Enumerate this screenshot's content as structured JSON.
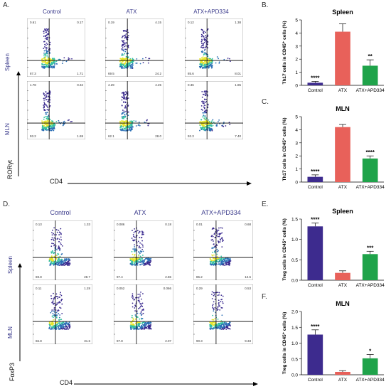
{
  "panels": {
    "A": {
      "label": "A.",
      "columns": [
        "Control",
        "ATX",
        "ATX+APD334"
      ],
      "rows": [
        "Spleen",
        "MLN"
      ],
      "ylabel": "RORγt",
      "xlabel": "CD4",
      "quadrants": [
        [
          [
            "0.61",
            "0.17",
            "87.3",
            "1.71"
          ],
          [
            "0.19",
            "4.15",
            "69.5",
            "24.2"
          ],
          [
            "0.12",
            "1.38",
            "85.6",
            "8.01"
          ]
        ],
        [
          [
            "1.78",
            "0.34",
            "93.2",
            "1.69"
          ],
          [
            "4.29",
            "4.25",
            "62.1",
            "28.0"
          ],
          [
            "0.36",
            "1.85",
            "92.3",
            "7.40"
          ]
        ]
      ]
    },
    "D": {
      "label": "D.",
      "columns": [
        "Control",
        "ATX",
        "ATX+APD334"
      ],
      "rows": [
        "Spleen",
        "MLN"
      ],
      "ylabel": "FoxP3",
      "xlabel": "CD4",
      "quadrants": [
        [
          [
            "0.13",
            "1.33",
            "69.8",
            "28.7"
          ],
          [
            "0.086",
            "0.18",
            "97.4",
            "2.86"
          ],
          [
            "0.01",
            "0.68",
            "86.2",
            "12.6"
          ]
        ],
        [
          [
            "0.11",
            "1.28",
            "66.8",
            "31.6"
          ],
          [
            "0.052",
            "0.066",
            "97.8",
            "2.07"
          ],
          [
            "0.29",
            "0.53",
            "90.3",
            "9.33"
          ]
        ]
      ]
    }
  },
  "chart_data": [
    {
      "panel": "B.",
      "type": "bar",
      "title": "Spleen",
      "ylabel": "Th17 cells in CD45⁺ cells (%)",
      "categories": [
        "Control",
        "ATX",
        "ATX+APD334"
      ],
      "values": [
        0.2,
        4.1,
        1.5
      ],
      "errors": [
        0.1,
        0.6,
        0.45
      ],
      "sig": [
        "****",
        "",
        "**"
      ],
      "ylim": [
        0,
        5
      ],
      "yticks": [
        "0",
        "1",
        "2",
        "3",
        "4",
        "5"
      ],
      "colors": [
        "#3d2b8e",
        "#e8615a",
        "#1fa34a"
      ]
    },
    {
      "panel": "C.",
      "type": "bar",
      "title": "MLN",
      "ylabel": "Th17 cells in CD45⁺ cells (%)",
      "categories": [
        "Control",
        "ATX",
        "ATX+APD334"
      ],
      "values": [
        0.4,
        4.2,
        1.8
      ],
      "errors": [
        0.15,
        0.2,
        0.2
      ],
      "sig": [
        "****",
        "",
        "****"
      ],
      "ylim": [
        0,
        5
      ],
      "yticks": [
        "0",
        "1",
        "2",
        "3",
        "4",
        "5"
      ],
      "colors": [
        "#3d2b8e",
        "#e8615a",
        "#1fa34a"
      ]
    },
    {
      "panel": "E.",
      "type": "bar",
      "title": "Spleen",
      "ylabel": "Treg cells in CD45⁺ cells (%)",
      "categories": [
        "Control",
        "ATX",
        "ATX+APD334"
      ],
      "values": [
        1.32,
        0.18,
        0.64
      ],
      "errors": [
        0.08,
        0.05,
        0.07
      ],
      "sig": [
        "****",
        "",
        "***"
      ],
      "ylim": [
        0,
        1.5
      ],
      "yticks": [
        "0.0",
        "0.5",
        "1.0",
        "1.5"
      ],
      "colors": [
        "#3d2b8e",
        "#e8615a",
        "#1fa34a"
      ]
    },
    {
      "panel": "F.",
      "type": "bar",
      "title": "MLN",
      "ylabel": "Treg cells in CD45⁺ cells (%)",
      "categories": [
        "Control",
        "ATX",
        "ATX+APD334"
      ],
      "values": [
        1.27,
        0.09,
        0.52
      ],
      "errors": [
        0.15,
        0.04,
        0.12
      ],
      "sig": [
        "****",
        "",
        "*"
      ],
      "ylim": [
        0,
        2.0
      ],
      "yticks": [
        "0.0",
        "0.5",
        "1.0",
        "1.5",
        "2.0"
      ],
      "colors": [
        "#3d2b8e",
        "#e8615a",
        "#1fa34a"
      ]
    }
  ]
}
